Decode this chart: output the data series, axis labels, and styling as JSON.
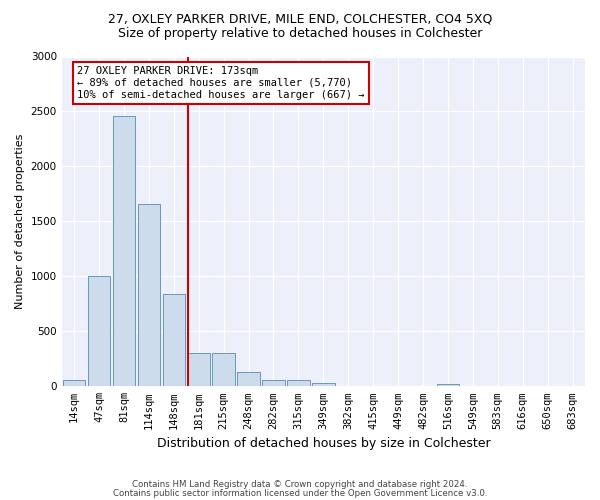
{
  "title": "27, OXLEY PARKER DRIVE, MILE END, COLCHESTER, CO4 5XQ",
  "subtitle": "Size of property relative to detached houses in Colchester",
  "xlabel": "Distribution of detached houses by size in Colchester",
  "ylabel": "Number of detached properties",
  "footer1": "Contains HM Land Registry data © Crown copyright and database right 2024.",
  "footer2": "Contains public sector information licensed under the Open Government Licence v3.0.",
  "annotation_line1": "27 OXLEY PARKER DRIVE: 173sqm",
  "annotation_line2": "← 89% of detached houses are smaller (5,770)",
  "annotation_line3": "10% of semi-detached houses are larger (667) →",
  "bar_color": "#ccdcec",
  "bar_edge_color": "#6699bb",
  "vline_color": "#cc0000",
  "vline_x_idx": 5,
  "categories": [
    "14sqm",
    "47sqm",
    "81sqm",
    "114sqm",
    "148sqm",
    "181sqm",
    "215sqm",
    "248sqm",
    "282sqm",
    "315sqm",
    "349sqm",
    "382sqm",
    "415sqm",
    "449sqm",
    "482sqm",
    "516sqm",
    "549sqm",
    "583sqm",
    "616sqm",
    "650sqm",
    "683sqm"
  ],
  "values": [
    60,
    1000,
    2460,
    1660,
    840,
    300,
    300,
    130,
    55,
    55,
    30,
    0,
    0,
    0,
    0,
    20,
    0,
    0,
    0,
    0,
    0
  ],
  "ylim": [
    0,
    3000
  ],
  "yticks": [
    0,
    500,
    1000,
    1500,
    2000,
    2500,
    3000
  ],
  "background_color": "#edf0fa",
  "title_fontsize": 9,
  "subtitle_fontsize": 9,
  "xlabel_fontsize": 9,
  "ylabel_fontsize": 8,
  "tick_fontsize": 7.5
}
